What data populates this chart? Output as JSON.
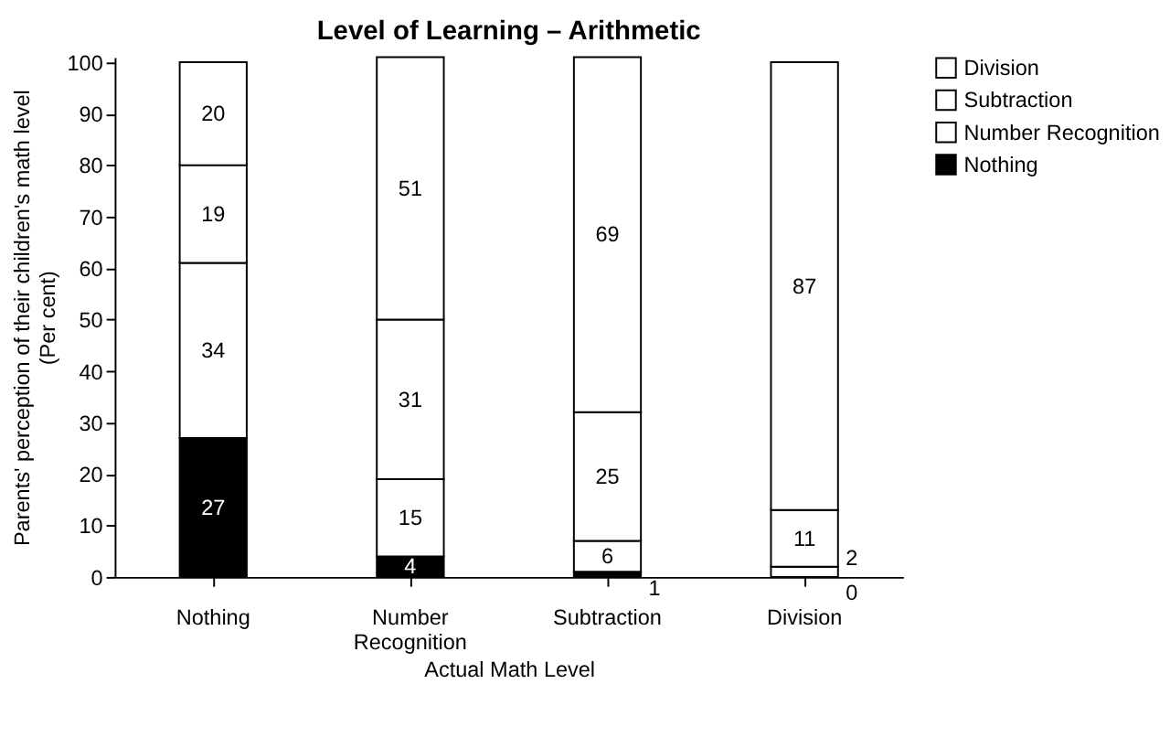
{
  "chart_data": {
    "type": "bar",
    "title": "Level of Learning – Arithmetic",
    "xlabel": "Actual Math Level",
    "ylabel": "Parents' perception of their children's math level\n(Per cent)",
    "categories": [
      "Nothing",
      "Number Recognition",
      "Subtraction",
      "Division"
    ],
    "stacked": true,
    "ylim": [
      0,
      101
    ],
    "yticks": [
      0,
      10,
      20,
      30,
      40,
      50,
      60,
      70,
      80,
      90,
      100
    ],
    "grid": false,
    "legend": "right",
    "data_labels": true,
    "series": [
      {
        "name": "Nothing",
        "color": "#000000",
        "values": [
          27,
          4,
          1,
          0
        ]
      },
      {
        "name": "Number Recognition",
        "color": "#ffffff",
        "values": [
          34,
          15,
          6,
          2
        ]
      },
      {
        "name": "Subtraction",
        "color": "#ffffff",
        "values": [
          19,
          31,
          25,
          11
        ]
      },
      {
        "name": "Division",
        "color": "#ffffff",
        "values": [
          20,
          51,
          69,
          87
        ]
      }
    ]
  }
}
